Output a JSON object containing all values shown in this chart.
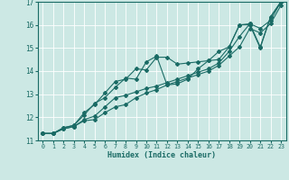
{
  "title": "",
  "xlabel": "Humidex (Indice chaleur)",
  "bg_color": "#cce8e4",
  "grid_color": "#ffffff",
  "line_color": "#1a6b65",
  "xlim": [
    -0.5,
    23.5
  ],
  "ylim": [
    11,
    17
  ],
  "xticks": [
    0,
    1,
    2,
    3,
    4,
    5,
    6,
    7,
    8,
    9,
    10,
    11,
    12,
    13,
    14,
    15,
    16,
    17,
    18,
    19,
    20,
    21,
    22,
    23
  ],
  "yticks": [
    11,
    12,
    13,
    14,
    15,
    16,
    17
  ],
  "series": [
    [
      11.3,
      11.3,
      11.55,
      11.65,
      12.2,
      12.55,
      13.05,
      13.55,
      13.65,
      14.1,
      14.05,
      14.6,
      14.6,
      14.3,
      14.35,
      14.4,
      14.45,
      14.5,
      15.05,
      16.0,
      16.0,
      15.0,
      16.35,
      17.0
    ],
    [
      11.3,
      11.3,
      11.55,
      11.65,
      12.1,
      12.6,
      12.85,
      13.3,
      13.7,
      13.65,
      14.4,
      14.65,
      13.4,
      13.45,
      13.65,
      14.1,
      14.45,
      14.85,
      15.05,
      16.0,
      16.05,
      15.05,
      16.35,
      17.0
    ],
    [
      11.3,
      11.3,
      11.5,
      11.6,
      11.9,
      12.05,
      12.45,
      12.85,
      12.95,
      13.1,
      13.25,
      13.35,
      13.5,
      13.65,
      13.8,
      13.95,
      14.1,
      14.35,
      14.85,
      15.5,
      16.05,
      15.85,
      16.2,
      17.0
    ],
    [
      11.3,
      11.3,
      11.5,
      11.6,
      11.85,
      11.9,
      12.2,
      12.45,
      12.55,
      12.85,
      13.05,
      13.2,
      13.4,
      13.55,
      13.7,
      13.85,
      14.0,
      14.25,
      14.65,
      15.05,
      15.85,
      15.65,
      16.05,
      16.85
    ]
  ]
}
